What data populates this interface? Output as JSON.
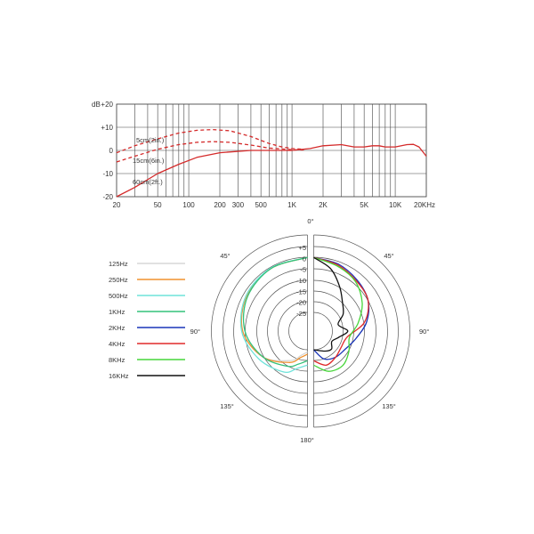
{
  "chart_data": [
    {
      "type": "line",
      "x_scale": "log",
      "ylabel": "dB",
      "xlim": [
        20,
        20000
      ],
      "ylim": [
        -20,
        20
      ],
      "grid": true,
      "y_ticks": [
        "+20",
        "+10",
        "0",
        "-10",
        "-20"
      ],
      "x_ticks": [
        {
          "v": 20,
          "label": "20"
        },
        {
          "v": 50,
          "label": "50"
        },
        {
          "v": 100,
          "label": "100"
        },
        {
          "v": 200,
          "label": "200"
        },
        {
          "v": 300,
          "label": "300"
        },
        {
          "v": 500,
          "label": "500"
        },
        {
          "v": 1000,
          "label": "1K"
        },
        {
          "v": 2000,
          "label": "2K"
        },
        {
          "v": 5000,
          "label": "5K"
        },
        {
          "v": 10000,
          "label": "10K"
        },
        {
          "v": 20000,
          "label": "20KHz"
        }
      ],
      "series": [
        {
          "name": "5cm(2in.)",
          "style": "dashed",
          "color": "#d42a2a",
          "points": [
            [
              20,
              -1
            ],
            [
              30,
              2
            ],
            [
              50,
              5
            ],
            [
              80,
              7.5
            ],
            [
              120,
              8.7
            ],
            [
              170,
              9
            ],
            [
              250,
              8.5
            ],
            [
              400,
              6
            ],
            [
              600,
              3
            ],
            [
              800,
              1.5
            ],
            [
              1000,
              0.8
            ],
            [
              1300,
              0.5
            ]
          ]
        },
        {
          "name": "15cm(6in.)",
          "style": "dashed",
          "color": "#d42a2a",
          "points": [
            [
              20,
              -5
            ],
            [
              30,
              -2.5
            ],
            [
              50,
              0.5
            ],
            [
              80,
              2.5
            ],
            [
              120,
              3.5
            ],
            [
              170,
              3.8
            ],
            [
              250,
              3.5
            ],
            [
              400,
              2.3
            ],
            [
              600,
              1
            ],
            [
              1000,
              0.3
            ],
            [
              1300,
              0.2
            ]
          ]
        },
        {
          "name": "60cm(2ft.)",
          "style": "solid",
          "color": "#d42a2a",
          "points": [
            [
              20,
              -20
            ],
            [
              30,
              -16
            ],
            [
              50,
              -10
            ],
            [
              80,
              -6
            ],
            [
              120,
              -3
            ],
            [
              200,
              -1
            ],
            [
              400,
              0
            ],
            [
              1000,
              0
            ],
            [
              1500,
              0.8
            ],
            [
              2000,
              2
            ],
            [
              3000,
              2.5
            ],
            [
              4000,
              1.5
            ],
            [
              5000,
              1.5
            ],
            [
              6000,
              2
            ],
            [
              7000,
              2
            ],
            [
              8000,
              1.5
            ],
            [
              10000,
              1.5
            ],
            [
              13000,
              2.5
            ],
            [
              15000,
              2.6
            ],
            [
              17000,
              1.5
            ],
            [
              20000,
              -2.5
            ]
          ]
        }
      ]
    },
    {
      "type": "polar",
      "r_ticks": [
        "+5",
        "0",
        "-5",
        "-10",
        "-15",
        "-20",
        "-25"
      ],
      "angle_labels": [
        {
          "a": 0,
          "label": "0°"
        },
        {
          "a": 45,
          "label": "45°"
        },
        {
          "a": -45,
          "label": "45°"
        },
        {
          "a": 90,
          "label": "90°"
        },
        {
          "a": -90,
          "label": "90°"
        },
        {
          "a": 135,
          "label": "135°"
        },
        {
          "a": -135,
          "label": "135°"
        },
        {
          "a": 180,
          "label": "180°"
        }
      ],
      "series": [
        {
          "name": "125Hz",
          "color": "#d7d7d7",
          "side": "left",
          "points": [
            [
              0,
              0
            ],
            [
              30,
              -0.5
            ],
            [
              60,
              -1.5
            ],
            [
              90,
              -4
            ],
            [
              120,
              -10
            ],
            [
              150,
              -18
            ],
            [
              165,
              -22
            ],
            [
              180,
              -24
            ]
          ]
        },
        {
          "name": "250Hz",
          "color": "#f0922e",
          "side": "left",
          "points": [
            [
              0,
              0
            ],
            [
              30,
              -0.5
            ],
            [
              60,
              -1.5
            ],
            [
              90,
              -4
            ],
            [
              120,
              -10
            ],
            [
              150,
              -17
            ],
            [
              165,
              -21
            ],
            [
              180,
              -23
            ]
          ]
        },
        {
          "name": "500Hz",
          "color": "#6fe3da",
          "side": "left",
          "points": [
            [
              0,
              0
            ],
            [
              30,
              -0.3
            ],
            [
              60,
              -1.2
            ],
            [
              90,
              -3.5
            ],
            [
              120,
              -8
            ],
            [
              150,
              -12
            ],
            [
              165,
              -16
            ],
            [
              180,
              -18
            ]
          ]
        },
        {
          "name": "1KHz",
          "color": "#33c27a",
          "side": "left",
          "points": [
            [
              0,
              0
            ],
            [
              30,
              -0.5
            ],
            [
              60,
              -2
            ],
            [
              90,
              -5
            ],
            [
              120,
              -10
            ],
            [
              150,
              -15
            ],
            [
              165,
              -18
            ],
            [
              180,
              -20
            ]
          ]
        },
        {
          "name": "2KHz",
          "color": "#1a35b8",
          "side": "right",
          "points": [
            [
              0,
              0
            ],
            [
              20,
              -1
            ],
            [
              40,
              -3
            ],
            [
              60,
              -5
            ],
            [
              80,
              -9
            ],
            [
              100,
              -14
            ],
            [
              120,
              -17
            ],
            [
              140,
              -18
            ],
            [
              160,
              -20
            ],
            [
              180,
              -25
            ]
          ]
        },
        {
          "name": "4KHz",
          "color": "#e02a2a",
          "side": "right",
          "points": [
            [
              0,
              0
            ],
            [
              20,
              -1.5
            ],
            [
              40,
              -3.5
            ],
            [
              60,
              -5
            ],
            [
              80,
              -10
            ],
            [
              100,
              -18
            ],
            [
              120,
              -19
            ],
            [
              140,
              -18
            ],
            [
              160,
              -17
            ],
            [
              180,
              -20
            ]
          ]
        },
        {
          "name": "8KHz",
          "color": "#47d63a",
          "side": "right",
          "points": [
            [
              0,
              0
            ],
            [
              20,
              -2
            ],
            [
              40,
              -4
            ],
            [
              60,
              -8
            ],
            [
              80,
              -13
            ],
            [
              100,
              -17
            ],
            [
              120,
              -15
            ],
            [
              140,
              -13
            ],
            [
              160,
              -14
            ],
            [
              180,
              -18
            ]
          ]
        },
        {
          "name": "16KHz",
          "color": "#111111",
          "side": "right",
          "points": [
            [
              0,
              0
            ],
            [
              15,
              -4
            ],
            [
              30,
              -10
            ],
            [
              45,
              -15
            ],
            [
              60,
              -18
            ],
            [
              75,
              -22
            ],
            [
              90,
              -18
            ],
            [
              105,
              -22
            ],
            [
              120,
              -24
            ],
            [
              135,
              -22
            ],
            [
              150,
              -23
            ],
            [
              180,
              -25
            ]
          ]
        }
      ]
    }
  ]
}
